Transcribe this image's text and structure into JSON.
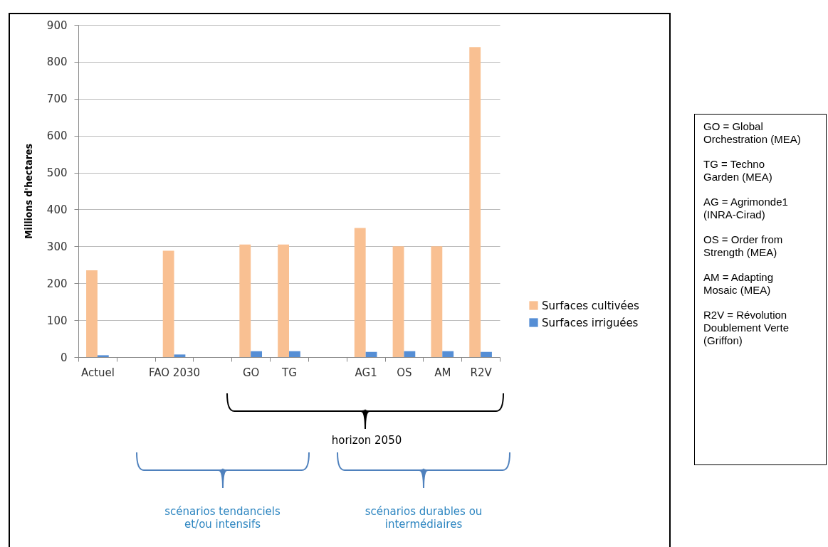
{
  "chart_data": {
    "type": "bar",
    "ylabel": "Millions d'hectares",
    "categories": [
      "Actuel",
      null,
      "FAO 2030",
      null,
      "GO",
      "TG",
      null,
      "AG1",
      "OS",
      "AM",
      "R2V"
    ],
    "series": [
      {
        "name": "Surfaces cultivées",
        "color": "#f9c092",
        "values": [
          235,
          null,
          288,
          null,
          305,
          305,
          null,
          350,
          300,
          300,
          840
        ]
      },
      {
        "name": "Surfaces irriguées",
        "color": "#558ed5",
        "values": [
          5,
          null,
          7,
          null,
          16,
          16,
          null,
          14,
          16,
          16,
          14
        ]
      }
    ],
    "ylim": [
      0,
      900
    ],
    "yticks": [
      0,
      100,
      200,
      300,
      400,
      500,
      600,
      700,
      800,
      900
    ],
    "grid": "y",
    "legend": "right",
    "annotations": [
      "horizon 2050",
      "scénarios tendanciels et/ou intensifs",
      "scénarios durables ou intermédiaires",
      "GO = Global Orchestration (MEA)",
      "TG = Techno Garden (MEA)",
      "AG = Agrimonde1 (INRA-Cirad)",
      "OS = Order from Strength (MEA)",
      "AM = Adapting Mosaic (MEA)",
      "R2V = Révolution Doublement Verte (Griffon)"
    ]
  }
}
